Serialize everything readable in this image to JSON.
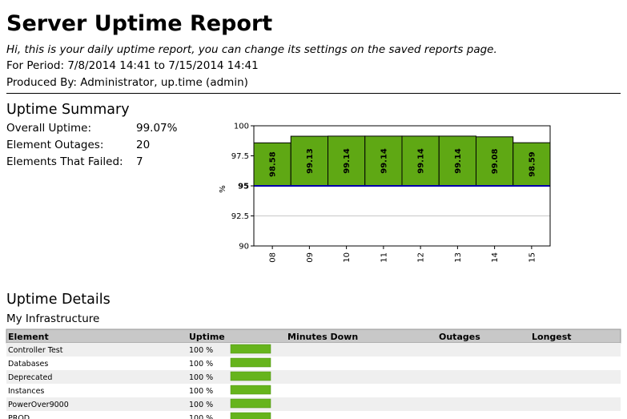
{
  "header": {
    "title": "Server Uptime Report",
    "intro": "Hi, this is your daily uptime report, you can change its settings on the saved reports page.",
    "period": "For Period: 7/8/2014 14:41 to 7/15/2014 14:41",
    "produced_by": "Produced By: Administrator, up.time (admin)"
  },
  "summary": {
    "title": "Uptime Summary",
    "rows": [
      [
        "Overall Uptime:",
        "99.07%"
      ],
      [
        "Element Outages:",
        "20"
      ],
      [
        "Elements That Failed:",
        "7"
      ]
    ]
  },
  "chart_data": {
    "type": "bar",
    "y_label": "%",
    "categories": [
      "08",
      "09",
      "10",
      "11",
      "12",
      "13",
      "14",
      "15"
    ],
    "values": [
      98.58,
      99.13,
      99.14,
      99.14,
      99.14,
      99.14,
      99.08,
      98.59
    ],
    "color": "#5fa814",
    "threshold": 95,
    "threshold_color": "#0000aa",
    "ylim": [
      90,
      100
    ],
    "yticks": [
      90,
      92.5,
      95,
      97.5,
      100
    ],
    "grid": true
  },
  "details": {
    "title": "Uptime Details",
    "group": "My Infrastructure",
    "columns": [
      "Element",
      "Uptime",
      "Minutes Down",
      "Outages",
      "Longest"
    ],
    "rows": [
      [
        "Controller Test",
        "100 %"
      ],
      [
        "Databases",
        "100 %"
      ],
      [
        "Deprecated",
        "100 %"
      ],
      [
        "Instances",
        "100 %"
      ],
      [
        "PowerOver9000",
        "100 %"
      ],
      [
        "PROD",
        "100 %"
      ]
    ]
  }
}
